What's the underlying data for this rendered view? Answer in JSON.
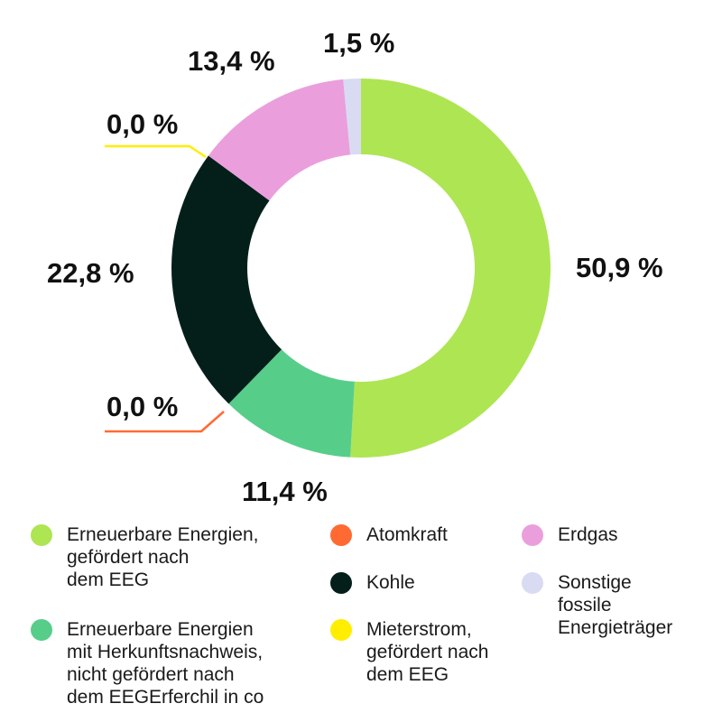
{
  "chart_data": {
    "type": "pie",
    "style": "donut",
    "slices": [
      {
        "label": "Erneuerbare Energien, gefördert nach dem EEG",
        "value": 50.9,
        "text": "50,9 %",
        "color": "#aee553"
      },
      {
        "label": "Erneuerbare Energien mit Herkunftsnachweis, nicht gefördert nach dem EEGErferchil in co",
        "value": 11.4,
        "text": "11,4 %",
        "color": "#57cd8a"
      },
      {
        "label": "Atomkraft",
        "value": 0.0,
        "text": "0,0 %",
        "color": "#ff6a33"
      },
      {
        "label": "Kohle",
        "value": 22.8,
        "text": "22,8 %",
        "color": "#041f1a"
      },
      {
        "label": "Mieterstrom, gefördert nach dem EEG",
        "value": 0.0,
        "text": "0,0 %",
        "color": "#ffee00"
      },
      {
        "label": "Erdgas",
        "value": 13.4,
        "text": "13,4 %",
        "color": "#ea9fdc"
      },
      {
        "label": "Sonstige fossile Energieträger",
        "value": 1.5,
        "text": "1,5 %",
        "color": "#d9dbf2"
      }
    ],
    "legend_order": [
      [
        "Erneuerbare Energien,\ngefördert nach\ndem EEG",
        "Atomkraft",
        "Erdgas"
      ],
      [
        "Erneuerbare Energien\nmit Herkunftsnachweis,\nnicht gefördert nach\ndem EEGErferchil in co",
        "Kohle",
        "Sonstige\nfossile\nEnergieträger"
      ],
      [
        "",
        "Mieterstrom,\ngefördert nach\ndem EEG",
        ""
      ]
    ]
  }
}
